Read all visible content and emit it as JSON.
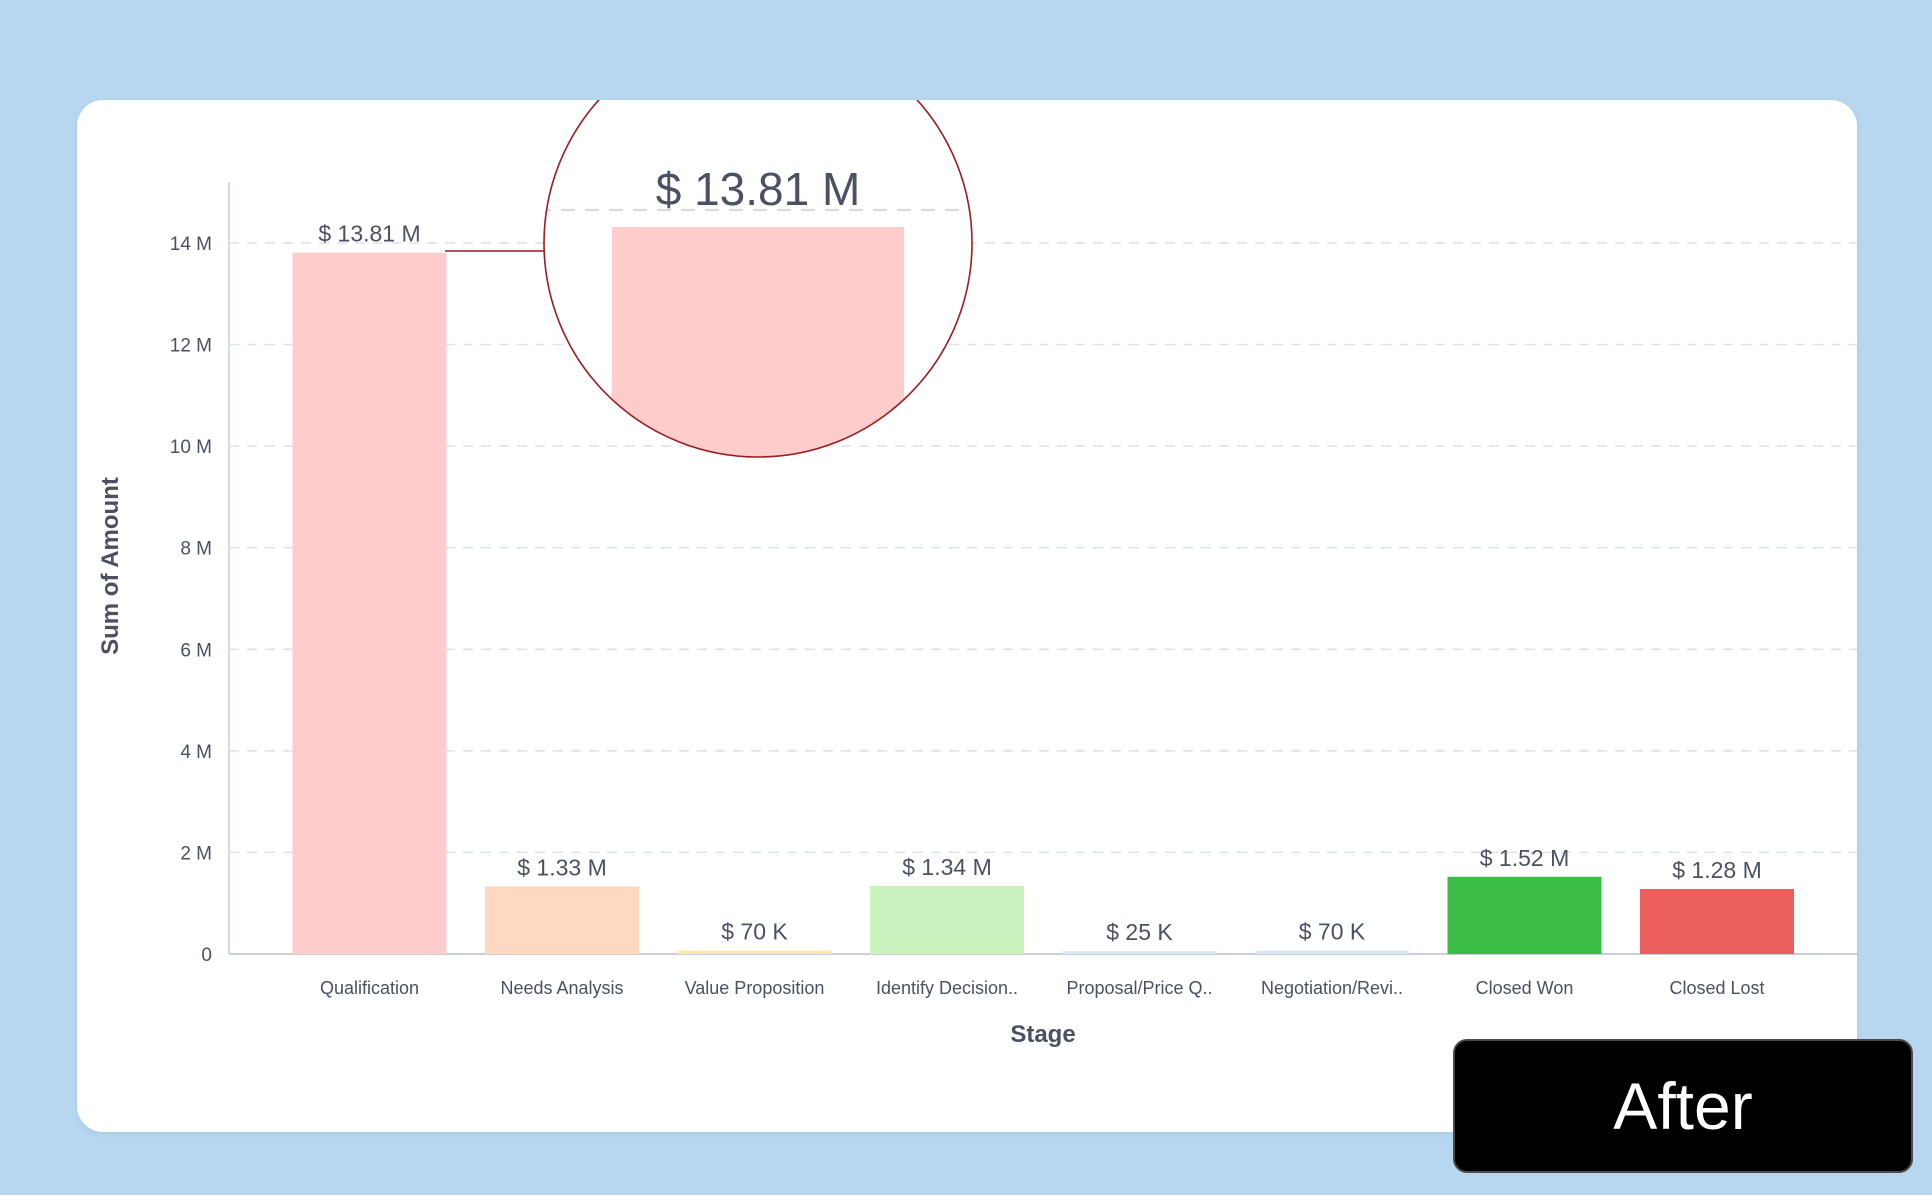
{
  "badge": {
    "label": "After"
  },
  "colors": {
    "background": "#b6d7ef",
    "text": "#4a5161",
    "grid": "#dde1e7",
    "axis": "#c9cfd8",
    "magnifier_border": "#9b1c24"
  },
  "magnifier": {
    "label": "$ 13.81 M",
    "category": "Qualification"
  },
  "chart_data": {
    "type": "bar",
    "xlabel": "Stage",
    "ylabel": "Sum of Amount",
    "ylim": [
      0,
      15.2
    ],
    "yticks": [
      0,
      2,
      4,
      6,
      8,
      10,
      12,
      14
    ],
    "ytick_labels": [
      "0",
      "2 M",
      "4 M",
      "6 M",
      "8 M",
      "10 M",
      "12 M",
      "14 M"
    ],
    "grid": true,
    "categories": [
      "Qualification",
      "Needs Analysis",
      "Value Proposition",
      "Identify Decision..",
      "Proposal/Price Q..",
      "Negotiation/Revi..",
      "Closed Won",
      "Closed Lost"
    ],
    "values": [
      13.81,
      1.33,
      0.07,
      1.34,
      0.025,
      0.07,
      1.52,
      1.28
    ],
    "value_labels": [
      "$ 13.81 M",
      "$ 1.33 M",
      "$ 70 K",
      "$ 1.34 M",
      "$ 25 K",
      "$ 70 K",
      "$ 1.52 M",
      "$ 1.28 M"
    ],
    "bar_colors": [
      "#ffcccc",
      "#ffd8c2",
      "#fbe9b0",
      "#c9f2bf",
      "#dbe8f7",
      "#dbe8f7",
      "#3bbd45",
      "#eb5f5f"
    ]
  }
}
